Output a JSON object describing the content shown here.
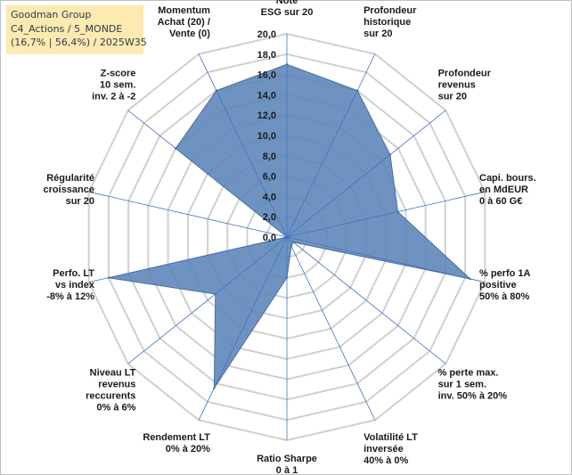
{
  "title_box": {
    "line1": "Goodman Group",
    "line2": "C4_Actions / 5_MONDE",
    "line3": "(16,7% | 56,4%) / 2025W35"
  },
  "chart_data": {
    "type": "radar",
    "title": "Goodman Group",
    "axes": [
      [
        "Note",
        "ESG sur 20"
      ],
      [
        "Profondeur",
        "historique",
        "sur 20"
      ],
      [
        "Profondeur",
        "revenus",
        "sur 20"
      ],
      [
        "Capi. bours.",
        "en MdEUR",
        "0 à 60 G€"
      ],
      [
        "% perfo 1A",
        "positive",
        "50% à 80%"
      ],
      [
        "% perte max.",
        "sur 1 sem.",
        "inv. 50% à 20%"
      ],
      [
        "Volatilité LT",
        "inversée",
        "40% à 0%"
      ],
      [
        "Ratio Sharpe",
        "0 à 1"
      ],
      [
        "Rendement LT",
        "0% à 20%"
      ],
      [
        "Niveau LT",
        "revenus",
        "reccurents",
        "0% à 6%"
      ],
      [
        "Perfo. LT",
        "vs index",
        "-8% à 12%"
      ],
      [
        "Régularité",
        "croissance",
        "sur 20"
      ],
      [
        "Z-score",
        "10 sem.",
        "inv. 2 à -2"
      ],
      [
        "Momentum",
        "Achat (20) /",
        "Vente (0)"
      ]
    ],
    "values": [
      17.0,
      16.0,
      13.0,
      11.2,
      18.5,
      0.8,
      1.0,
      4.0,
      16.5,
      9.0,
      18.0,
      0.0,
      14.0,
      16.0
    ],
    "rlim": [
      0,
      20
    ],
    "ticks": [
      0,
      2,
      4,
      6,
      8,
      10,
      12,
      14,
      16,
      18,
      20
    ],
    "tick_labels": [
      "0,0",
      "2,0",
      "4,0",
      "6,0",
      "8,0",
      "10,0",
      "12,0",
      "14,0",
      "16,0",
      "18,0",
      "20,0"
    ],
    "grid": true,
    "legend": "none",
    "colors": {
      "fill": "#5b84b8",
      "stroke": "#4a6d9c",
      "grid": "#d0d0d0",
      "spoke": "#4472c4",
      "title_bg": "#fdeab0"
    }
  }
}
